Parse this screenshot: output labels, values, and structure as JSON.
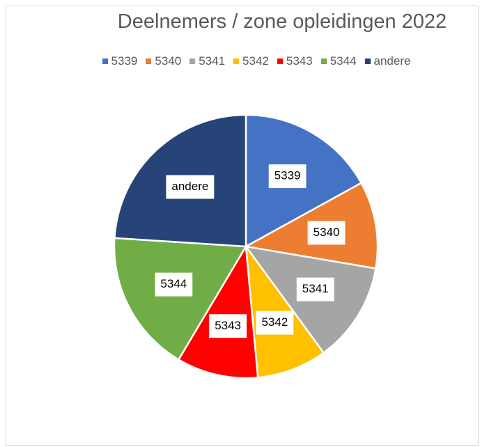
{
  "chart_data": {
    "type": "pie",
    "title": "Deelnemers / zone opleidingen 2022",
    "categories": [
      "5339",
      "5340",
      "5341",
      "5342",
      "5343",
      "5344",
      "andere"
    ],
    "values": [
      17.0,
      10.7,
      12.3,
      8.6,
      10.0,
      17.5,
      24.0
    ],
    "colors": [
      "#4472c4",
      "#ed7d31",
      "#a5a5a5",
      "#ffc000",
      "#ff0000",
      "#70ad47",
      "#264478"
    ],
    "legend": "top"
  }
}
